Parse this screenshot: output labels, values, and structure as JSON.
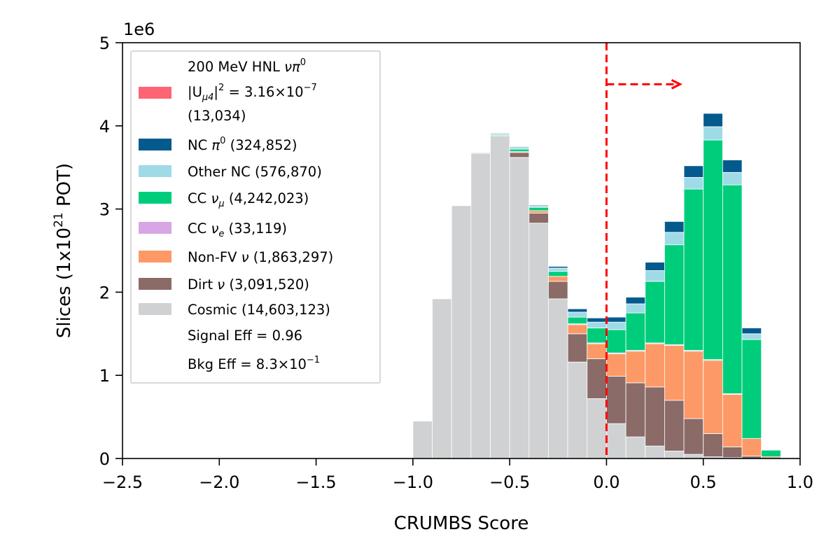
{
  "chart_data": {
    "type": "bar",
    "stacked": true,
    "xlabel": "CRUMBS Score",
    "ylabel_parts": [
      "Slices (1x10",
      "21",
      " POT)"
    ],
    "y_offset_text": "1e6",
    "xlim": [
      -2.5,
      1.0
    ],
    "ylim": [
      0,
      5
    ],
    "xticks": [
      "−2.5",
      "−2.0",
      "−1.5",
      "−1.0",
      "−0.5",
      "0.0",
      "0.5",
      "1.0"
    ],
    "yticks": [
      "0",
      "1",
      "2",
      "3",
      "4",
      "5"
    ],
    "bins": [
      -1.0,
      -0.9,
      -0.8,
      -0.7,
      -0.6,
      -0.5,
      -0.4,
      -0.3,
      -0.2,
      -0.1,
      0.0,
      0.1,
      0.2,
      0.3,
      0.4,
      0.5,
      0.6,
      0.7,
      0.8
    ],
    "bin_width": 0.1,
    "cut_value": 0.0,
    "cut_arrow": {
      "from": 0.0,
      "to": 0.38,
      "y": 4.5
    },
    "series": [
      {
        "name": "Cosmic",
        "color": "#d0d1d3",
        "values": [
          0.45,
          1.92,
          3.04,
          3.67,
          3.88,
          3.62,
          2.83,
          1.92,
          1.16,
          0.72,
          0.42,
          0.26,
          0.15,
          0.09,
          0.05,
          0.02,
          0.01,
          0.0,
          0.0
        ]
      },
      {
        "name": "Dirt",
        "color": "#8a6b68",
        "values": [
          0.0,
          0.0,
          0.0,
          0.0,
          0.0,
          0.06,
          0.12,
          0.21,
          0.34,
          0.48,
          0.57,
          0.65,
          0.71,
          0.61,
          0.43,
          0.28,
          0.13,
          0.03,
          0.0
        ]
      },
      {
        "name": "Non-FV",
        "color": "#fd9966",
        "values": [
          0.0,
          0.0,
          0.0,
          0.0,
          0.0,
          0.01,
          0.03,
          0.06,
          0.11,
          0.18,
          0.27,
          0.38,
          0.52,
          0.66,
          0.81,
          0.88,
          0.63,
          0.21,
          0.02
        ]
      },
      {
        "name": "CC nue",
        "color": "#d8a6e4",
        "values": [
          0.0,
          0.0,
          0.0,
          0.0,
          0.0,
          0.0,
          0.0,
          0.0,
          0.01,
          0.01,
          0.01,
          0.01,
          0.01,
          0.01,
          0.01,
          0.01,
          0.01,
          0.0,
          0.0
        ]
      },
      {
        "name": "CC numu",
        "color": "#00cd7c",
        "values": [
          0.0,
          0.0,
          0.0,
          0.0,
          0.01,
          0.03,
          0.04,
          0.06,
          0.08,
          0.18,
          0.28,
          0.45,
          0.74,
          1.2,
          1.94,
          2.64,
          2.51,
          1.19,
          0.08
        ]
      },
      {
        "name": "Other NC",
        "color": "#9edbe7",
        "values": [
          0.0,
          0.0,
          0.0,
          0.01,
          0.01,
          0.02,
          0.02,
          0.04,
          0.06,
          0.07,
          0.09,
          0.11,
          0.13,
          0.15,
          0.14,
          0.16,
          0.15,
          0.07,
          0.0
        ]
      },
      {
        "name": "NC pi0",
        "color": "#045a8d",
        "values": [
          0.0,
          0.0,
          0.0,
          0.0,
          0.01,
          0.01,
          0.01,
          0.02,
          0.04,
          0.05,
          0.06,
          0.08,
          0.1,
          0.13,
          0.14,
          0.16,
          0.15,
          0.07,
          0.0
        ]
      },
      {
        "name": "200 MeV HNL",
        "color": "#ff6475",
        "values": [
          0,
          0,
          0,
          0,
          0,
          0,
          0,
          0,
          0,
          0,
          0,
          0,
          0,
          0,
          0,
          0,
          0,
          0,
          0
        ]
      }
    ]
  },
  "legend": {
    "hnl_line1_pre": "200 MeV HNL ",
    "hnl_line1_sym": "νπ",
    "hnl_line1_sup": "0",
    "hnl_line2_pre": "|U",
    "hnl_line2_sub": "μ4",
    "hnl_line2_mid": "|",
    "hnl_line2_sup1": "2",
    "hnl_line2_val": " = 3.16×10",
    "hnl_line2_sup2": "−7",
    "hnl_line3": " (13,034)",
    "ncpi0_pre": "NC ",
    "ncpi0_sym": "π",
    "ncpi0_sup": "0",
    "ncpi0_post": " (324,852)",
    "othernc": "Other NC (576,870)",
    "ccnumu_pre": "CC ",
    "ccnumu_sym": "ν",
    "ccnumu_sub": "μ",
    "ccnumu_post": " (4,242,023)",
    "ccnue_pre": "CC ",
    "ccnue_sym": "ν",
    "ccnue_sub": "e",
    "ccnue_post": " (33,119)",
    "nonfv_pre": "Non-FV ",
    "nonfv_sym": "ν",
    "nonfv_post": " (1,863,297)",
    "dirt_pre": "Dirt ",
    "dirt_sym": "ν",
    "dirt_post": " (3,091,520)",
    "cosmic": "Cosmic (14,603,123)",
    "signal_eff": "Signal Eff = 0.96",
    "bkg_eff_pre": "Bkg Eff = 8.3×10",
    "bkg_eff_sup": "−1"
  }
}
